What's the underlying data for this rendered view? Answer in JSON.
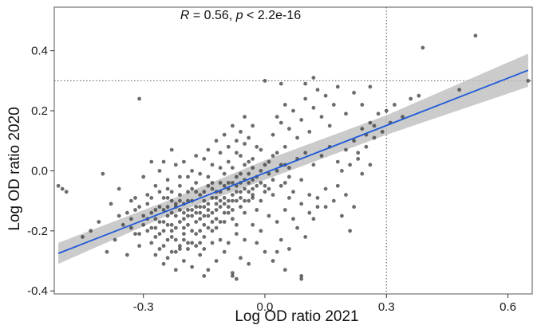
{
  "chart_data": {
    "type": "scatter",
    "title": "",
    "xlabel": "Log OD ratio 2021",
    "ylabel": "Log OD ratio 2020",
    "xlim": [
      -0.52,
      0.66
    ],
    "ylim": [
      -0.41,
      0.545
    ],
    "x_ticks": [
      -0.3,
      0.0,
      0.3,
      0.6
    ],
    "y_ticks": [
      -0.4,
      -0.2,
      0.0,
      0.2,
      0.4
    ],
    "x_tick_labels": [
      "-0.3",
      "0.0",
      "0.3",
      "0.6"
    ],
    "y_tick_labels": [
      "-0.4",
      "-0.2",
      "0.0",
      "0.2",
      "0.4"
    ],
    "grid": false,
    "annotation": {
      "r_symbol": "R",
      "r_text": " = 0.56, ",
      "p_symbol": "p",
      "p_text": " < 2.2e-16",
      "x": -0.06,
      "y": 0.505
    },
    "reference_lines": [
      {
        "orientation": "vertical",
        "value": 0.3,
        "style": "dotted"
      },
      {
        "orientation": "horizontal",
        "value": 0.3,
        "style": "dotted"
      }
    ],
    "regression": {
      "x0": -0.51,
      "y0": -0.275,
      "x1": 0.65,
      "y1": 0.335,
      "ci_low": [
        [
          -0.51,
          -0.31
        ],
        [
          -0.25,
          -0.155
        ],
        [
          0.0,
          -0.03
        ],
        [
          0.3,
          0.12
        ],
        [
          0.65,
          0.28
        ]
      ],
      "ci_high": [
        [
          0.65,
          0.39
        ],
        [
          0.3,
          0.185
        ],
        [
          0.0,
          0.035
        ],
        [
          -0.25,
          -0.105
        ],
        [
          -0.51,
          -0.24
        ]
      ],
      "color": "#1f5ad8",
      "band_color": "#bebebe"
    },
    "point_color": "#333333",
    "points": [
      [
        -0.38,
        -0.11
      ],
      [
        -0.36,
        -0.15
      ],
      [
        -0.34,
        -0.14
      ],
      [
        -0.31,
        -0.21
      ],
      [
        -0.3,
        -0.18
      ],
      [
        -0.28,
        -0.14
      ],
      [
        -0.27,
        -0.19
      ],
      [
        -0.26,
        -0.12
      ],
      [
        -0.25,
        -0.2
      ],
      [
        -0.24,
        -0.15
      ],
      [
        -0.23,
        -0.22
      ],
      [
        -0.22,
        -0.11
      ],
      [
        -0.21,
        -0.17
      ],
      [
        -0.2,
        -0.19
      ],
      [
        -0.19,
        -0.13
      ],
      [
        -0.18,
        -0.24
      ],
      [
        -0.17,
        -0.12
      ],
      [
        -0.16,
        -0.16
      ],
      [
        -0.15,
        -0.1
      ],
      [
        -0.14,
        -0.13
      ],
      [
        -0.13,
        -0.2
      ],
      [
        -0.12,
        -0.07
      ],
      [
        -0.11,
        -0.12
      ],
      [
        -0.1,
        -0.05
      ],
      [
        -0.09,
        -0.14
      ],
      [
        -0.08,
        -0.08
      ],
      [
        -0.07,
        -0.18
      ],
      [
        -0.06,
        -0.04
      ],
      [
        -0.05,
        -0.1
      ],
      [
        -0.04,
        -0.01
      ],
      [
        -0.03,
        -0.06
      ],
      [
        -0.02,
        -0.13
      ],
      [
        -0.01,
        0.0
      ],
      [
        0.0,
        -0.05
      ],
      [
        0.01,
        0.03
      ],
      [
        0.02,
        -0.03
      ],
      [
        0.03,
        0.06
      ],
      [
        0.04,
        0.02
      ],
      [
        0.05,
        0.08
      ],
      [
        0.06,
        -0.02
      ],
      [
        -0.27,
        -0.16
      ],
      [
        -0.26,
        -0.21
      ],
      [
        -0.25,
        -0.17
      ],
      [
        -0.24,
        -0.23
      ],
      [
        -0.23,
        -0.14
      ],
      [
        -0.22,
        -0.19
      ],
      [
        -0.21,
        -0.25
      ],
      [
        -0.2,
        -0.14
      ],
      [
        -0.19,
        -0.18
      ],
      [
        -0.18,
        -0.1
      ],
      [
        -0.17,
        -0.21
      ],
      [
        -0.16,
        -0.08
      ],
      [
        -0.15,
        -0.15
      ],
      [
        -0.14,
        -0.19
      ],
      [
        -0.13,
        -0.09
      ],
      [
        -0.12,
        -0.16
      ],
      [
        -0.11,
        -0.04
      ],
      [
        -0.1,
        -0.11
      ],
      [
        -0.09,
        -0.06
      ],
      [
        -0.08,
        -0.13
      ],
      [
        -0.07,
        -0.02
      ],
      [
        -0.06,
        -0.09
      ],
      [
        -0.05,
        0.02
      ],
      [
        -0.04,
        -0.07
      ],
      [
        -0.03,
        0.04
      ],
      [
        -0.02,
        -0.02
      ],
      [
        -0.01,
        0.07
      ],
      [
        0.0,
        0.02
      ],
      [
        0.01,
        -0.06
      ],
      [
        0.02,
        0.05
      ],
      [
        -0.3,
        -0.15
      ],
      [
        -0.29,
        -0.11
      ],
      [
        -0.28,
        -0.24
      ],
      [
        -0.27,
        -0.13
      ],
      [
        -0.26,
        -0.26
      ],
      [
        -0.25,
        -0.09
      ],
      [
        -0.24,
        -0.12
      ],
      [
        -0.23,
        -0.18
      ],
      [
        -0.22,
        -0.27
      ],
      [
        -0.21,
        -0.1
      ],
      [
        -0.2,
        -0.23
      ],
      [
        -0.19,
        -0.07
      ],
      [
        -0.18,
        -0.15
      ],
      [
        -0.17,
        -0.04
      ],
      [
        -0.16,
        -0.2
      ],
      [
        -0.15,
        -0.12
      ],
      [
        -0.14,
        -0.05
      ],
      [
        -0.13,
        -0.14
      ],
      [
        -0.12,
        -0.11
      ],
      [
        -0.11,
        -0.17
      ],
      [
        -0.1,
        -0.01
      ],
      [
        -0.09,
        -0.1
      ],
      [
        -0.08,
        0.01
      ],
      [
        -0.07,
        -0.07
      ],
      [
        -0.06,
        0.05
      ],
      [
        -0.05,
        -0.14
      ],
      [
        -0.04,
        0.03
      ],
      [
        -0.03,
        -0.09
      ],
      [
        -0.02,
        0.08
      ],
      [
        -0.01,
        -0.04
      ],
      [
        -0.33,
        -0.19
      ],
      [
        -0.32,
        -0.13
      ],
      [
        -0.31,
        -0.25
      ],
      [
        -0.29,
        -0.2
      ],
      [
        -0.28,
        -0.09
      ],
      [
        -0.27,
        -0.28
      ],
      [
        -0.26,
        -0.07
      ],
      [
        -0.25,
        -0.25
      ],
      [
        -0.24,
        -0.06
      ],
      [
        -0.23,
        -0.1
      ],
      [
        -0.22,
        -0.15
      ],
      [
        -0.21,
        -0.02
      ],
      [
        -0.2,
        -0.11
      ],
      [
        -0.19,
        -0.26
      ],
      [
        -0.18,
        -0.06
      ],
      [
        -0.17,
        -0.17
      ],
      [
        -0.16,
        -0.12
      ],
      [
        -0.15,
        -0.22
      ],
      [
        -0.14,
        -0.02
      ],
      [
        -0.13,
        -0.06
      ],
      [
        -0.12,
        -0.19
      ],
      [
        -0.11,
        0.01
      ],
      [
        -0.1,
        -0.09
      ],
      [
        -0.09,
        0.03
      ],
      [
        -0.08,
        -0.16
      ],
      [
        -0.07,
        0.06
      ],
      [
        -0.06,
        -0.12
      ],
      [
        -0.05,
        0.09
      ],
      [
        -0.04,
        -0.04
      ],
      [
        -0.03,
        0.01
      ],
      [
        -0.22,
        0.02
      ],
      [
        -0.21,
        -0.05
      ],
      [
        -0.2,
        0.03
      ],
      [
        -0.19,
        -0.02
      ],
      [
        -0.18,
        0.0
      ],
      [
        -0.17,
        0.05
      ],
      [
        -0.16,
        -0.01
      ],
      [
        -0.15,
        0.04
      ],
      [
        -0.14,
        0.07
      ],
      [
        -0.13,
        0.02
      ],
      [
        -0.12,
        0.1
      ],
      [
        -0.11,
        0.06
      ],
      [
        -0.1,
        0.12
      ],
      [
        -0.09,
        0.08
      ],
      [
        -0.08,
        0.15
      ],
      [
        -0.07,
        0.1
      ],
      [
        -0.06,
        0.13
      ],
      [
        -0.05,
        0.18
      ],
      [
        -0.04,
        0.11
      ],
      [
        -0.03,
        0.15
      ],
      [
        -0.25,
        -0.31
      ],
      [
        -0.24,
        -0.29
      ],
      [
        -0.22,
        -0.33
      ],
      [
        -0.2,
        -0.3
      ],
      [
        -0.18,
        -0.32
      ],
      [
        -0.16,
        -0.28
      ],
      [
        -0.14,
        -0.33
      ],
      [
        -0.12,
        -0.3
      ],
      [
        -0.1,
        -0.27
      ],
      [
        -0.08,
        -0.35
      ],
      [
        -0.06,
        -0.29
      ],
      [
        -0.04,
        -0.31
      ],
      [
        -0.02,
        -0.24
      ],
      [
        0.0,
        -0.27
      ],
      [
        0.02,
        -0.3
      ],
      [
        0.04,
        -0.23
      ],
      [
        0.06,
        -0.26
      ],
      [
        0.08,
        -0.19
      ],
      [
        0.1,
        -0.22
      ],
      [
        0.12,
        -0.16
      ],
      [
        0.02,
        0.12
      ],
      [
        0.03,
        0.18
      ],
      [
        0.04,
        0.16
      ],
      [
        0.05,
        0.22
      ],
      [
        0.06,
        0.14
      ],
      [
        0.07,
        0.2
      ],
      [
        0.08,
        0.11
      ],
      [
        0.09,
        0.17
      ],
      [
        0.1,
        0.24
      ],
      [
        0.11,
        0.13
      ],
      [
        0.12,
        0.21
      ],
      [
        0.13,
        0.27
      ],
      [
        0.14,
        0.18
      ],
      [
        0.15,
        0.25
      ],
      [
        0.16,
        0.15
      ],
      [
        0.17,
        0.22
      ],
      [
        0.18,
        0.28
      ],
      [
        0.2,
        0.19
      ],
      [
        0.22,
        0.26
      ],
      [
        0.24,
        0.22
      ],
      [
        0.05,
        -0.04
      ],
      [
        0.06,
        0.01
      ],
      [
        0.07,
        -0.07
      ],
      [
        0.08,
        0.04
      ],
      [
        0.09,
        -0.03
      ],
      [
        0.1,
        0.06
      ],
      [
        0.11,
        -0.08
      ],
      [
        0.12,
        0.02
      ],
      [
        0.13,
        -0.12
      ],
      [
        0.14,
        0.05
      ],
      [
        0.15,
        -0.06
      ],
      [
        0.16,
        0.08
      ],
      [
        0.17,
        -0.1
      ],
      [
        0.18,
        0.03
      ],
      [
        0.19,
        -0.15
      ],
      [
        0.2,
        0.07
      ],
      [
        0.21,
        -0.2
      ],
      [
        0.22,
        0.1
      ],
      [
        0.23,
        0.04
      ],
      [
        0.24,
        0.14
      ],
      [
        0.25,
        0.08
      ],
      [
        0.26,
        0.16
      ],
      [
        0.27,
        0.11
      ],
      [
        0.28,
        0.19
      ],
      [
        0.29,
        0.13
      ],
      [
        0.3,
        0.2
      ],
      [
        0.31,
        0.16
      ],
      [
        0.32,
        0.22
      ],
      [
        0.34,
        0.18
      ],
      [
        0.36,
        0.24
      ],
      [
        -0.45,
        -0.22
      ],
      [
        -0.43,
        -0.2
      ],
      [
        -0.41,
        -0.17
      ],
      [
        -0.4,
        -0.01
      ],
      [
        -0.39,
        -0.27
      ],
      [
        -0.37,
        -0.23
      ],
      [
        -0.36,
        -0.06
      ],
      [
        -0.35,
        -0.18
      ],
      [
        -0.34,
        -0.28
      ],
      [
        -0.33,
        -0.1
      ],
      [
        -0.32,
        -0.21
      ],
      [
        -0.31,
        0.24
      ],
      [
        -0.3,
        -0.02
      ],
      [
        -0.29,
        -0.08
      ],
      [
        -0.28,
        0.03
      ],
      [
        -0.27,
        -0.05
      ],
      [
        -0.26,
        0.0
      ],
      [
        -0.25,
        0.03
      ],
      [
        -0.24,
        -0.03
      ],
      [
        -0.23,
        0.07
      ],
      [
        -0.51,
        -0.05
      ],
      [
        -0.5,
        -0.06
      ],
      [
        -0.49,
        -0.07
      ],
      [
        0.0,
        0.3
      ],
      [
        0.04,
        0.29
      ],
      [
        0.1,
        0.29
      ],
      [
        0.12,
        0.31
      ],
      [
        0.26,
        0.28
      ],
      [
        0.38,
        0.25
      ],
      [
        0.48,
        0.27
      ],
      [
        0.39,
        0.41
      ],
      [
        0.52,
        0.45
      ],
      [
        0.65,
        0.3
      ],
      [
        0.09,
        -0.35
      ],
      [
        0.09,
        -0.36
      ],
      [
        -0.07,
        -0.36
      ],
      [
        -0.08,
        -0.34
      ],
      [
        0.03,
        -0.27
      ],
      [
        0.05,
        -0.33
      ],
      [
        -0.15,
        -0.35
      ],
      [
        -0.23,
        -0.27
      ],
      [
        -0.21,
        -0.26
      ],
      [
        -0.19,
        -0.24
      ],
      [
        -0.17,
        -0.25
      ],
      [
        -0.15,
        -0.26
      ],
      [
        -0.13,
        -0.24
      ],
      [
        -0.11,
        -0.23
      ],
      [
        -0.09,
        -0.24
      ],
      [
        -0.07,
        -0.21
      ],
      [
        -0.05,
        -0.23
      ],
      [
        -0.03,
        -0.18
      ],
      [
        -0.01,
        -0.2
      ],
      [
        0.01,
        -0.15
      ],
      [
        0.03,
        -0.17
      ],
      [
        0.05,
        -0.13
      ],
      [
        0.07,
        -0.16
      ],
      [
        0.09,
        -0.11
      ],
      [
        0.11,
        -0.14
      ],
      [
        0.13,
        -0.09
      ],
      [
        0.15,
        -0.12
      ],
      [
        -0.24,
        -0.09
      ],
      [
        -0.23,
        -0.07
      ],
      [
        -0.22,
        -0.12
      ],
      [
        -0.21,
        -0.08
      ],
      [
        -0.2,
        -0.16
      ],
      [
        -0.19,
        -0.1
      ],
      [
        -0.18,
        -0.13
      ],
      [
        -0.17,
        -0.07
      ],
      [
        -0.16,
        -0.14
      ],
      [
        -0.15,
        -0.07
      ],
      [
        -0.14,
        -0.11
      ],
      [
        -0.13,
        -0.04
      ],
      [
        -0.12,
        -0.09
      ],
      [
        -0.11,
        -0.07
      ],
      [
        -0.1,
        -0.14
      ],
      [
        -0.09,
        -0.04
      ],
      [
        -0.08,
        -0.1
      ],
      [
        -0.07,
        -0.05
      ],
      [
        -0.06,
        -0.07
      ],
      [
        -0.05,
        -0.03
      ],
      [
        0.18,
        -0.05
      ],
      [
        0.19,
        0.0
      ],
      [
        0.2,
        -0.08
      ],
      [
        0.21,
        0.02
      ],
      [
        0.22,
        -0.12
      ],
      [
        0.23,
        0.06
      ],
      [
        0.24,
        -0.01
      ],
      [
        0.25,
        0.12
      ],
      [
        0.26,
        0.02
      ],
      [
        0.27,
        0.15
      ],
      [
        -0.03,
        -0.08
      ],
      [
        -0.02,
        -0.05
      ],
      [
        -0.01,
        -0.1
      ],
      [
        0.0,
        -0.07
      ],
      [
        0.01,
        -0.01
      ],
      [
        0.02,
        -0.08
      ],
      [
        0.03,
        0.0
      ],
      [
        0.04,
        -0.05
      ],
      [
        0.05,
        0.02
      ],
      [
        0.06,
        -0.09
      ],
      [
        -0.33,
        -0.16
      ],
      [
        -0.32,
        -0.09
      ],
      [
        -0.31,
        -0.12
      ],
      [
        -0.29,
        -0.16
      ],
      [
        -0.28,
        -0.19
      ],
      [
        -0.27,
        -0.22
      ],
      [
        -0.26,
        -0.17
      ],
      [
        -0.25,
        -0.13
      ],
      [
        -0.24,
        -0.18
      ],
      [
        -0.23,
        -0.2
      ],
      [
        -0.22,
        -0.23
      ],
      [
        -0.21,
        -0.13
      ],
      [
        -0.2,
        -0.21
      ],
      [
        -0.19,
        -0.15
      ],
      [
        -0.18,
        -0.2
      ],
      [
        -0.17,
        -0.14
      ],
      [
        -0.16,
        -0.24
      ],
      [
        -0.15,
        -0.18
      ],
      [
        -0.14,
        -0.15
      ],
      [
        -0.13,
        -0.17
      ],
      [
        -0.12,
        -0.13
      ],
      [
        -0.11,
        -0.1
      ],
      [
        -0.1,
        -0.17
      ],
      [
        -0.09,
        -0.12
      ],
      [
        -0.08,
        -0.04
      ],
      [
        -0.07,
        -0.1
      ],
      [
        -0.06,
        -0.01
      ],
      [
        -0.05,
        -0.06
      ],
      [
        -0.04,
        -0.1
      ],
      [
        -0.03,
        -0.03
      ]
    ]
  }
}
